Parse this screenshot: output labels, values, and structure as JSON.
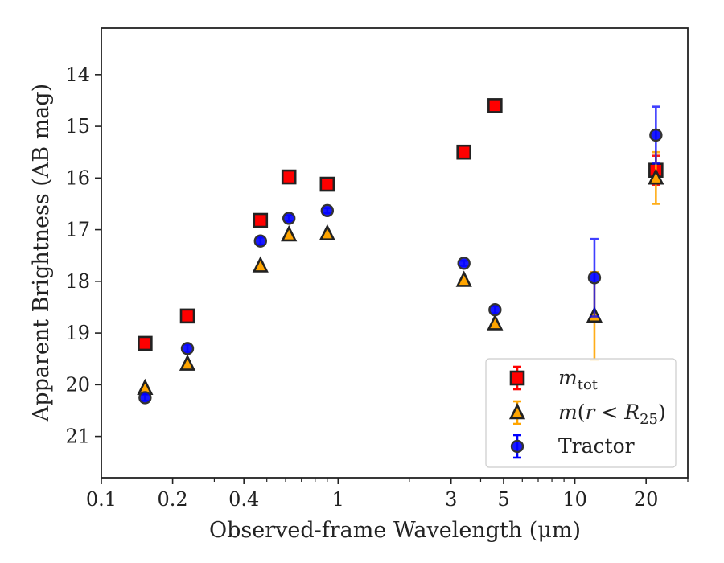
{
  "chart_data": {
    "type": "scatter",
    "xlabel": "Observed-frame Wavelength (μm)",
    "ylabel": "Apparent Brightness (AB mag)",
    "x_scale": "log",
    "xlim": [
      0.1,
      30
    ],
    "ylim": [
      21.8,
      13.1
    ],
    "y_inverted": true,
    "xticks": [
      0.1,
      0.2,
      0.4,
      1,
      3,
      5,
      10,
      20
    ],
    "xtick_labels": [
      "0.1",
      "0.2",
      "0.4",
      "1",
      "3",
      "5",
      "10",
      "20"
    ],
    "yticks": [
      14,
      15,
      16,
      17,
      18,
      19,
      20,
      21
    ],
    "ytick_labels": [
      "14",
      "15",
      "16",
      "17",
      "18",
      "19",
      "20",
      "21"
    ],
    "grid": false,
    "legend_position": "lower-right",
    "series": [
      {
        "key": "mtot",
        "name_base": "m",
        "name_sub": "tot",
        "marker": "square",
        "color": "#ff0000",
        "edge_color": "#222222",
        "errorbar_color": "#ff0000",
        "x": [
          0.153,
          0.231,
          0.47,
          0.62,
          0.9,
          3.4,
          4.6,
          12.1,
          22
        ],
        "y": [
          19.2,
          18.67,
          16.82,
          15.98,
          16.12,
          15.5,
          14.6,
          null,
          15.85
        ],
        "yerr": [
          0,
          0,
          0,
          0,
          0,
          0,
          0,
          0,
          0.28
        ]
      },
      {
        "key": "mr25",
        "name_base": "m(",
        "name_var": "r",
        "name_mid": " < ",
        "name_var2": "R",
        "name_sub": "25",
        "name_end": ")",
        "marker": "triangle",
        "color": "#ffa500",
        "edge_color": "#222222",
        "errorbar_color": "#ffa500",
        "x": [
          0.153,
          0.231,
          0.47,
          0.62,
          0.9,
          3.4,
          4.6,
          12.1,
          22
        ],
        "y": [
          20.07,
          19.6,
          17.7,
          17.1,
          17.08,
          17.98,
          18.82,
          18.67,
          16.0
        ],
        "yerr": [
          0,
          0,
          0,
          0,
          0,
          0,
          0,
          0.85,
          0.5
        ]
      },
      {
        "key": "tractor",
        "name": "Tractor",
        "marker": "circle",
        "color": "#0000ff",
        "edge_color": "#333333",
        "errorbar_color": "#0000ff",
        "x": [
          0.153,
          0.231,
          0.47,
          0.62,
          0.9,
          3.4,
          4.6,
          12.1,
          22
        ],
        "y": [
          20.25,
          19.3,
          17.22,
          16.78,
          16.63,
          17.65,
          18.55,
          17.93,
          15.17
        ],
        "yerr": [
          0.06,
          0.08,
          0.07,
          0.06,
          0.05,
          0.05,
          0.07,
          0.75,
          0.55
        ]
      }
    ]
  }
}
